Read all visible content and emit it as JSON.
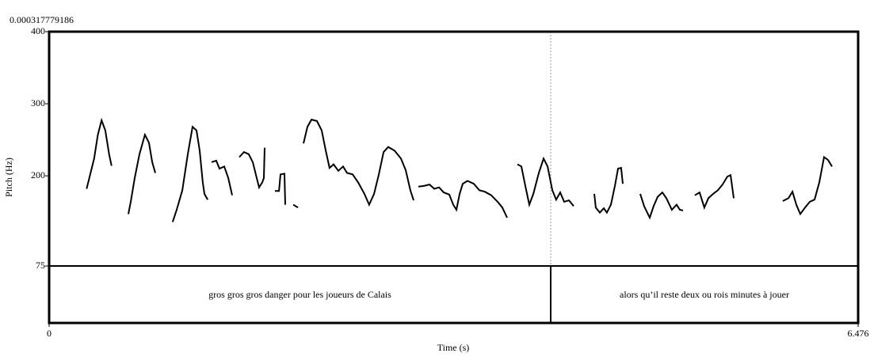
{
  "chart_data": {
    "type": "line",
    "top_label": "0.000317779186",
    "x_label": "Time (s)",
    "y_label": "Pitch (Hz)",
    "xlim": [
      0,
      6.476
    ],
    "xticks": [
      0,
      6.476
    ],
    "ylim": [
      75,
      400
    ],
    "yticks": [
      75,
      200,
      300,
      400
    ],
    "cursor": 4.015,
    "color": "#000000",
    "series": [
      {
        "x": [
          0.3,
          0.32,
          0.36,
          0.39,
          0.42,
          0.45,
          0.48,
          0.5,
          null,
          0.634,
          0.653,
          0.685,
          0.723,
          0.767,
          0.799,
          0.825,
          0.85,
          null,
          0.989,
          1.021,
          1.066,
          1.11,
          1.148,
          1.18,
          1.205,
          1.23,
          1.243,
          1.269,
          null,
          1.3,
          1.338,
          1.364,
          1.402,
          1.434,
          1.465,
          null,
          1.522,
          1.56,
          1.598,
          1.63,
          1.662,
          1.681,
          1.706,
          1.719,
          1.725,
          null,
          1.808,
          1.84,
          1.852,
          1.884,
          1.89,
          null,
          1.954,
          1.992,
          null,
          2.036,
          2.068,
          2.1,
          2.144,
          2.182,
          2.214,
          2.245,
          2.277,
          2.315,
          2.353,
          2.385,
          2.429,
          2.474,
          2.524,
          2.562,
          2.601,
          2.639,
          2.677,
          2.715,
          2.765,
          2.816,
          2.854,
          2.892,
          2.918,
          null,
          2.956,
          3.0,
          3.045,
          3.083,
          3.121,
          3.159,
          3.203,
          3.235,
          3.26,
          3.286,
          3.311,
          3.349,
          3.4,
          3.444,
          3.488,
          3.539,
          3.59,
          3.628,
          3.666,
          null,
          3.749,
          3.78,
          3.812,
          3.844,
          3.876,
          3.92,
          3.958,
          3.99,
          4.028,
          4.059,
          4.091,
          4.123,
          4.161,
          4.199,
          null,
          4.364,
          4.376,
          4.408,
          4.44,
          4.465,
          4.497,
          4.529,
          4.554,
          4.579,
          4.592,
          null,
          4.732,
          4.763,
          4.808,
          4.839,
          4.871,
          4.909,
          4.941,
          4.985,
          5.023,
          5.049,
          5.074,
          null,
          5.169,
          5.207,
          5.245,
          5.277,
          5.315,
          5.353,
          5.391,
          5.429,
          5.455,
          5.48,
          null,
          5.873,
          5.918,
          5.95,
          5.981,
          6.013,
          6.051,
          6.089,
          6.127,
          6.165,
          6.203,
          6.235,
          6.267
        ],
        "values": [
          182,
          196,
          224,
          257,
          277,
          263,
          230,
          214,
          null,
          147,
          164,
          197,
          230,
          257,
          246,
          219,
          204,
          null,
          136,
          153,
          180,
          230,
          268,
          263,
          235,
          191,
          175,
          167,
          null,
          219,
          221,
          210,
          213,
          197,
          173,
          null,
          226,
          233,
          230,
          219,
          197,
          184,
          191,
          197,
          239,
          null,
          179,
          179,
          202,
          203,
          160,
          null,
          160,
          156,
          null,
          245,
          268,
          278,
          276,
          263,
          235,
          211,
          216,
          207,
          213,
          204,
          202,
          191,
          175,
          160,
          175,
          202,
          233,
          240,
          235,
          224,
          208,
          180,
          166,
          null,
          185,
          186,
          188,
          182,
          184,
          177,
          174,
          160,
          153,
          175,
          189,
          193,
          189,
          180,
          178,
          173,
          164,
          156,
          142,
          null,
          216,
          213,
          186,
          160,
          175,
          204,
          224,
          213,
          180,
          167,
          177,
          164,
          166,
          158,
          null,
          175,
          156,
          149,
          155,
          149,
          160,
          186,
          210,
          211,
          189,
          null,
          175,
          158,
          142,
          158,
          171,
          177,
          169,
          153,
          160,
          153,
          152,
          null,
          173,
          177,
          156,
          169,
          175,
          180,
          188,
          199,
          201,
          169,
          null,
          165,
          169,
          178,
          160,
          147,
          156,
          164,
          167,
          191,
          226,
          222,
          213
        ]
      }
    ],
    "tier": {
      "intervals": [
        {
          "xmin": 0,
          "xmax": 4.015,
          "text": "gros gros gros danger pour les joueurs de Calais"
        },
        {
          "xmin": 4.015,
          "xmax": 6.476,
          "text": "alors qu’il reste deux ou rois minutes à jouer"
        }
      ]
    }
  }
}
